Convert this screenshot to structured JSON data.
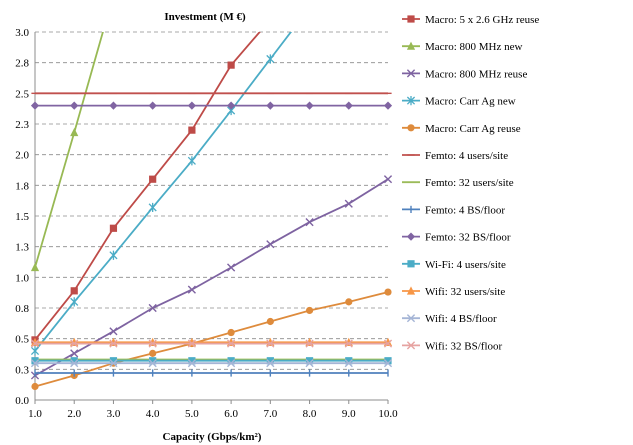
{
  "chart_data": {
    "type": "line",
    "title": "Investment (M €)",
    "xlabel": "Capacity (Gbps/km²)",
    "ylabel": "",
    "xlim": [
      1.0,
      10.0
    ],
    "ylim": [
      0.0,
      3.0
    ],
    "x_ticks": [
      "1.0",
      "2.0",
      "3.0",
      "4.0",
      "5.0",
      "6.0",
      "7.0",
      "8.0",
      "9.0",
      "10.0"
    ],
    "y_ticks": [
      "0.0",
      "0.3",
      "0.5",
      "0.8",
      "1.0",
      "1.3",
      "1.5",
      "1.8",
      "2.0",
      "2.3",
      "2.5",
      "2.8",
      "3.0"
    ],
    "y_tick_values": [
      0,
      0.25,
      0.5,
      0.75,
      1.0,
      1.25,
      1.5,
      1.75,
      2.0,
      2.25,
      2.5,
      2.75,
      3.0
    ],
    "grid": "horizontal dashed",
    "legend_position": "right",
    "series": [
      {
        "name": "Macro: 5 x 2.6 GHz reuse",
        "color": "#be4b48",
        "marker": "square",
        "x": [
          1,
          2,
          3,
          4,
          5,
          6,
          7
        ],
        "y": [
          0.49,
          0.89,
          1.4,
          1.8,
          2.2,
          2.73,
          3.1
        ]
      },
      {
        "name": "Macro: 800 MHz new",
        "color": "#98b954",
        "marker": "triangle",
        "x": [
          1,
          2,
          3
        ],
        "y": [
          1.08,
          2.18,
          3.3
        ]
      },
      {
        "name": "Macro: 800 MHz reuse",
        "color": "#7e63a1",
        "marker": "x",
        "x": [
          1,
          2,
          3,
          4,
          5,
          6,
          7,
          8,
          9,
          10
        ],
        "y": [
          0.2,
          0.38,
          0.56,
          0.75,
          0.9,
          1.08,
          1.27,
          1.45,
          1.6,
          1.8
        ]
      },
      {
        "name": "Macro: Carr Ag new",
        "color": "#4bacc6",
        "marker": "star",
        "x": [
          1,
          2,
          3,
          4,
          5,
          6,
          7,
          8
        ],
        "y": [
          0.4,
          0.8,
          1.18,
          1.57,
          1.95,
          2.36,
          2.78,
          3.2
        ]
      },
      {
        "name": "Macro: Carr Ag reuse",
        "color": "#de8b3c",
        "marker": "circle",
        "x": [
          1,
          2,
          3,
          4,
          5,
          6,
          7,
          8,
          9,
          10
        ],
        "y": [
          0.11,
          0.2,
          0.3,
          0.38,
          0.46,
          0.55,
          0.64,
          0.73,
          0.8,
          0.88
        ]
      },
      {
        "name": "Femto: 4 users/site",
        "color": "#c0504d",
        "marker": "dash",
        "x": [
          1,
          2,
          3,
          4,
          5,
          6,
          7,
          8,
          9,
          10
        ],
        "y": [
          2.5,
          2.5,
          2.5,
          2.5,
          2.5,
          2.5,
          2.5,
          2.5,
          2.5,
          2.5
        ]
      },
      {
        "name": "Femto: 32 users/site",
        "color": "#9bbb59",
        "marker": "dash",
        "x": [
          1,
          2,
          3,
          4,
          5,
          6,
          7,
          8,
          9,
          10
        ],
        "y": [
          0.33,
          0.33,
          0.33,
          0.33,
          0.33,
          0.33,
          0.33,
          0.33,
          0.33,
          0.33
        ]
      },
      {
        "name": "Femto: 4 BS/floor",
        "color": "#4f81bd",
        "marker": "plus",
        "x": [
          1,
          2,
          3,
          4,
          5,
          6,
          7,
          8,
          9,
          10
        ],
        "y": [
          0.22,
          0.22,
          0.22,
          0.22,
          0.22,
          0.22,
          0.22,
          0.22,
          0.22,
          0.22
        ]
      },
      {
        "name": "Femto: 32 BS/floor",
        "color": "#8064a2",
        "marker": "diamond",
        "x": [
          1,
          2,
          3,
          4,
          5,
          6,
          7,
          8,
          9,
          10
        ],
        "y": [
          2.4,
          2.4,
          2.4,
          2.4,
          2.4,
          2.4,
          2.4,
          2.4,
          2.4,
          2.4
        ]
      },
      {
        "name": "Wi-Fi: 4 users/site",
        "color": "#4bacc6",
        "marker": "square",
        "x": [
          1,
          2,
          3,
          4,
          5,
          6,
          7,
          8,
          9,
          10
        ],
        "y": [
          0.32,
          0.32,
          0.32,
          0.32,
          0.32,
          0.32,
          0.32,
          0.32,
          0.32,
          0.32
        ]
      },
      {
        "name": "Wifi: 32 users/site",
        "color": "#f79646",
        "marker": "triangle",
        "x": [
          1,
          2,
          3,
          4,
          5,
          6,
          7,
          8,
          9,
          10
        ],
        "y": [
          0.47,
          0.47,
          0.47,
          0.47,
          0.47,
          0.47,
          0.47,
          0.47,
          0.47,
          0.47
        ]
      },
      {
        "name": "Wifi: 4 BS/floor",
        "color": "#a5b5d6",
        "marker": "x",
        "x": [
          1,
          2,
          3,
          4,
          5,
          6,
          7,
          8,
          9,
          10
        ],
        "y": [
          0.3,
          0.3,
          0.3,
          0.3,
          0.3,
          0.3,
          0.3,
          0.3,
          0.3,
          0.3
        ]
      },
      {
        "name": "Wifi: 32 BS/floor",
        "color": "#e6a3a1",
        "marker": "x",
        "x": [
          1,
          2,
          3,
          4,
          5,
          6,
          7,
          8,
          9,
          10
        ],
        "y": [
          0.46,
          0.46,
          0.46,
          0.46,
          0.46,
          0.46,
          0.46,
          0.46,
          0.46,
          0.46
        ]
      }
    ]
  }
}
